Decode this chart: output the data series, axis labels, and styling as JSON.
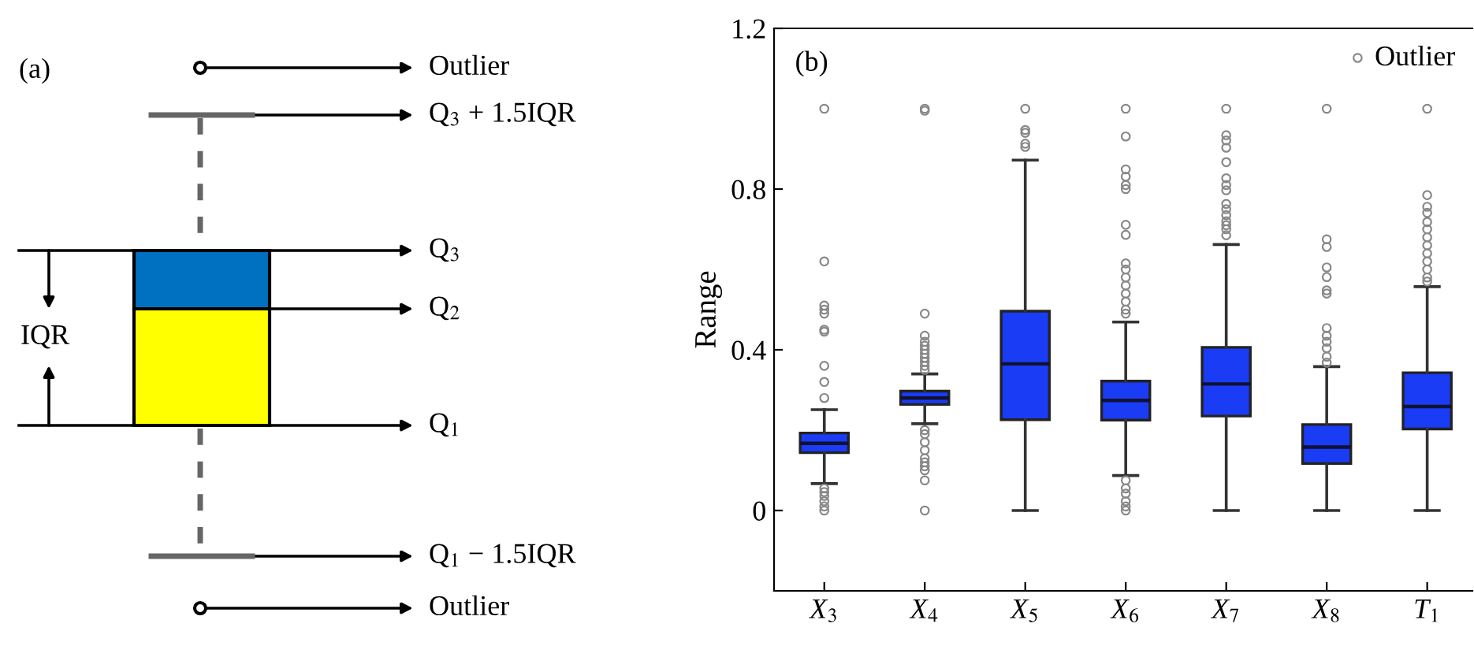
{
  "chart_data": [
    {
      "type": "other",
      "annotations": [
        "(a)",
        "Outlier",
        "Q$_{3}$ + 1.5IQR",
        "Q$_{3}$",
        "Q$_{2}$",
        "IQR",
        "Q$_{1}$",
        "Q$_{1}$ − 1.5IQR",
        "Outlier"
      ]
    },
    {
      "type": "box",
      "ylabel": "Range",
      "categories": [
        "X$_{3}$",
        "X$_{4}$",
        "X$_{5}$",
        "X$_{6}$",
        "X$_{7}$",
        "X$_{8}$",
        "T$_{1}$"
      ],
      "ylim": [
        -0.2,
        1.2
      ],
      "yticks": [
        0,
        0.4,
        0.8,
        1.2
      ],
      "legend": "top right",
      "grid": false,
      "annotations": [
        "(b)"
      ],
      "series": [
        {
          "type": "box",
          "color": "#1a3cf5",
          "boxes": [
            {
              "low": 0.067,
              "q1": 0.144,
              "median": 0.167,
              "q3": 0.193,
              "high": 0.251
            },
            {
              "low": 0.216,
              "q1": 0.264,
              "median": 0.28,
              "q3": 0.297,
              "high": 0.34
            },
            {
              "low": 0.0,
              "q1": 0.226,
              "median": 0.365,
              "q3": 0.496,
              "high": 0.872
            },
            {
              "low": 0.087,
              "q1": 0.225,
              "median": 0.274,
              "q3": 0.322,
              "high": 0.469
            },
            {
              "low": 0.0,
              "q1": 0.235,
              "median": 0.315,
              "q3": 0.406,
              "high": 0.662
            },
            {
              "low": 0.0,
              "q1": 0.117,
              "median": 0.158,
              "q3": 0.214,
              "high": 0.358
            },
            {
              "low": 0.0,
              "q1": 0.203,
              "median": 0.259,
              "q3": 0.343,
              "high": 0.557
            }
          ]
        },
        {
          "type": "scatter",
          "name": "Outlier",
          "color": "#888888",
          "marker": "circle",
          "x": [
            "X$_{3}$",
            "X$_{3}$",
            "X$_{3}$",
            "X$_{3}$",
            "X$_{3}$",
            "X$_{3}$",
            "X$_{3}$",
            "X$_{3}$",
            "X$_{3}$",
            "X$_{3}$",
            "X$_{3}$",
            "X$_{3}$",
            "X$_{3}$",
            "X$_{3}$",
            "X$_{3}$",
            "X$_{3}$",
            "X$_{4}$",
            "X$_{4}$",
            "X$_{4}$",
            "X$_{4}$",
            "X$_{4}$",
            "X$_{4}$",
            "X$_{4}$",
            "X$_{4}$",
            "X$_{4}$",
            "X$_{4}$",
            "X$_{4}$",
            "X$_{4}$",
            "X$_{4}$",
            "X$_{4}$",
            "X$_{4}$",
            "X$_{4}$",
            "X$_{4}$",
            "X$_{4}$",
            "X$_{4}$",
            "X$_{4}$",
            "X$_{4}$",
            "X$_{4}$",
            "X$_{5}$",
            "X$_{5}$",
            "X$_{5}$",
            "X$_{5}$",
            "X$_{5}$",
            "X$_{6}$",
            "X$_{6}$",
            "X$_{6}$",
            "X$_{6}$",
            "X$_{6}$",
            "X$_{6}$",
            "X$_{6}$",
            "X$_{6}$",
            "X$_{6}$",
            "X$_{6}$",
            "X$_{6}$",
            "X$_{6}$",
            "X$_{6}$",
            "X$_{6}$",
            "X$_{6}$",
            "X$_{6}$",
            "X$_{6}$",
            "X$_{6}$",
            "X$_{6}$",
            "X$_{6}$",
            "X$_{6}$",
            "X$_{6}$",
            "X$_{7}$",
            "X$_{7}$",
            "X$_{7}$",
            "X$_{7}$",
            "X$_{7}$",
            "X$_{7}$",
            "X$_{7}$",
            "X$_{7}$",
            "X$_{7}$",
            "X$_{7}$",
            "X$_{7}$",
            "X$_{7}$",
            "X$_{7}$",
            "X$_{7}$",
            "X$_{7}$",
            "X$_{8}$",
            "X$_{8}$",
            "X$_{8}$",
            "X$_{8}$",
            "X$_{8}$",
            "X$_{8}$",
            "X$_{8}$",
            "X$_{8}$",
            "X$_{8}$",
            "X$_{8}$",
            "X$_{8}$",
            "X$_{8}$",
            "X$_{8}$",
            "T$_{1}$",
            "T$_{1}$",
            "T$_{1}$",
            "T$_{1}$",
            "T$_{1}$",
            "T$_{1}$",
            "T$_{1}$",
            "T$_{1}$",
            "T$_{1}$",
            "T$_{1}$",
            "T$_{1}$",
            "T$_{1}$",
            "T$_{1}$"
          ],
          "values": [
            1.0,
            0.62,
            0.51,
            0.5,
            0.49,
            0.45,
            0.445,
            0.36,
            0.32,
            0.28,
            0.055,
            0.046,
            0.036,
            0.023,
            0.01,
            0.0,
            1.0,
            0.995,
            0.49,
            0.435,
            0.42,
            0.41,
            0.4,
            0.39,
            0.38,
            0.37,
            0.36,
            0.35,
            0.2,
            0.19,
            0.17,
            0.15,
            0.13,
            0.12,
            0.11,
            0.1,
            0.075,
            0.0,
            1.0,
            0.947,
            0.94,
            0.913,
            0.905,
            1.0,
            0.931,
            0.849,
            0.831,
            0.81,
            0.8,
            0.711,
            0.686,
            0.615,
            0.6,
            0.58,
            0.56,
            0.54,
            0.52,
            0.5,
            0.49,
            0.075,
            0.055,
            0.042,
            0.023,
            0.01,
            0.0,
            1.0,
            0.934,
            0.921,
            0.903,
            0.867,
            0.827,
            0.81,
            0.797,
            0.763,
            0.75,
            0.735,
            0.72,
            0.71,
            0.7,
            0.685,
            1.0,
            0.675,
            0.656,
            0.605,
            0.581,
            0.548,
            0.54,
            0.454,
            0.435,
            0.42,
            0.404,
            0.383,
            0.368,
            1.0,
            0.785,
            0.756,
            0.741,
            0.718,
            0.7,
            0.68,
            0.66,
            0.64,
            0.62,
            0.6,
            0.58,
            0.57
          ]
        }
      ]
    }
  ]
}
